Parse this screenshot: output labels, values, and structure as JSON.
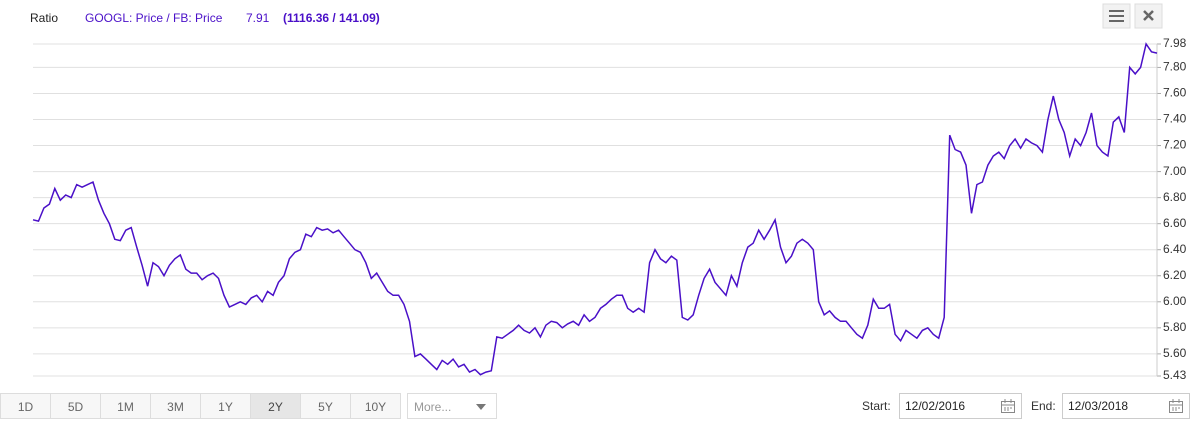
{
  "chart_data": {
    "type": "line",
    "label": "Ratio",
    "series": [
      {
        "name": "GOOGL: Price / FB: Price",
        "color": "#4a10c8",
        "values": [
          6.63,
          6.62,
          6.72,
          6.75,
          6.87,
          6.78,
          6.82,
          6.8,
          6.9,
          6.88,
          6.9,
          6.92,
          6.78,
          6.68,
          6.6,
          6.48,
          6.47,
          6.55,
          6.57,
          6.42,
          6.28,
          6.12,
          6.3,
          6.27,
          6.2,
          6.28,
          6.33,
          6.36,
          6.25,
          6.22,
          6.22,
          6.17,
          6.2,
          6.22,
          6.18,
          6.05,
          5.96,
          5.98,
          6.0,
          5.98,
          6.03,
          6.05,
          6.0,
          6.08,
          6.05,
          6.15,
          6.2,
          6.33,
          6.38,
          6.4,
          6.52,
          6.5,
          6.57,
          6.55,
          6.56,
          6.53,
          6.55,
          6.5,
          6.45,
          6.4,
          6.38,
          6.3,
          6.18,
          6.22,
          6.15,
          6.08,
          6.05,
          6.05,
          5.98,
          5.85,
          5.58,
          5.6,
          5.56,
          5.52,
          5.48,
          5.55,
          5.52,
          5.56,
          5.5,
          5.52,
          5.46,
          5.48,
          5.44,
          5.46,
          5.47,
          5.73,
          5.72,
          5.75,
          5.78,
          5.82,
          5.78,
          5.76,
          5.8,
          5.73,
          5.82,
          5.85,
          5.84,
          5.8,
          5.83,
          5.85,
          5.82,
          5.9,
          5.85,
          5.88,
          5.95,
          5.98,
          6.02,
          6.05,
          6.05,
          5.95,
          5.92,
          5.95,
          5.92,
          6.3,
          6.4,
          6.33,
          6.3,
          6.35,
          6.32,
          5.88,
          5.86,
          5.9,
          6.05,
          6.18,
          6.25,
          6.15,
          6.1,
          6.05,
          6.2,
          6.12,
          6.3,
          6.42,
          6.45,
          6.55,
          6.48,
          6.55,
          6.63,
          6.42,
          6.3,
          6.35,
          6.45,
          6.48,
          6.45,
          6.4,
          6.0,
          5.9,
          5.93,
          5.88,
          5.85,
          5.85,
          5.8,
          5.75,
          5.72,
          5.82,
          6.02,
          5.95,
          5.95,
          5.98,
          5.75,
          5.7,
          5.78,
          5.75,
          5.72,
          5.78,
          5.8,
          5.75,
          5.72,
          5.88,
          7.28,
          7.17,
          7.15,
          7.05,
          6.68,
          6.9,
          6.92,
          7.05,
          7.12,
          7.15,
          7.1,
          7.2,
          7.25,
          7.18,
          7.25,
          7.22,
          7.2,
          7.15,
          7.4,
          7.58,
          7.4,
          7.3,
          7.12,
          7.25,
          7.2,
          7.3,
          7.45,
          7.2,
          7.15,
          7.12,
          7.38,
          7.42,
          7.3,
          7.8,
          7.75,
          7.8,
          7.98,
          7.92,
          7.91
        ]
      }
    ],
    "last_value": 7.91,
    "last_note": "(1116.36 / 141.09)",
    "ylim": [
      5.43,
      7.98
    ],
    "yticks": [
      5.43,
      {
        "value": 5.6,
        "label": "5.60"
      },
      {
        "value": 5.8,
        "label": "5.80"
      },
      {
        "value": 6.0,
        "label": "6.00"
      },
      {
        "value": 6.2,
        "label": "6.20"
      },
      {
        "value": 6.4,
        "label": "6.40"
      },
      {
        "value": 6.6,
        "label": "6.60"
      },
      {
        "value": 6.8,
        "label": "6.80"
      },
      {
        "value": 7.0,
        "label": "7.00"
      },
      {
        "value": 7.2,
        "label": "7.20"
      },
      {
        "value": 7.4,
        "label": "7.40"
      },
      {
        "value": 7.6,
        "label": "7.60"
      },
      {
        "value": 7.8,
        "label": "7.80"
      },
      7.98
    ],
    "grid": true,
    "axis_side": "right"
  },
  "controls": {
    "ranges": [
      "1D",
      "5D",
      "1M",
      "3M",
      "1Y",
      "2Y",
      "5Y",
      "10Y"
    ],
    "selected_range": "2Y",
    "more": "More...",
    "start_label": "Start:",
    "start": "12/02/2016",
    "end_label": "End:",
    "end": "12/03/2018"
  }
}
